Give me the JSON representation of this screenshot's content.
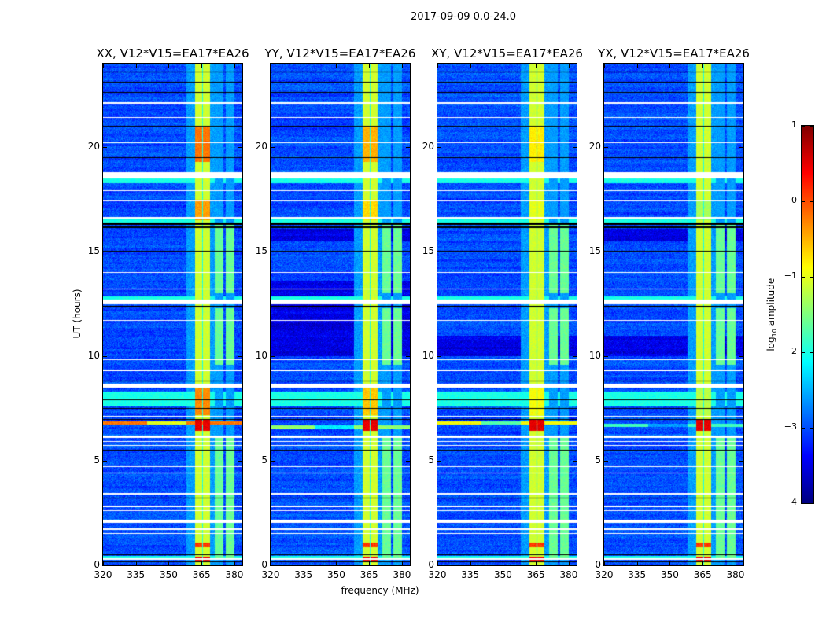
{
  "chart_data": {
    "type": "heatmap",
    "title": "2017-09-09 0.0-24.0",
    "xlabel": "frequency (MHz)",
    "ylabel": "UT (hours)",
    "xlim": [
      320,
      383.6
    ],
    "ylim": [
      0,
      24
    ],
    "xticks": [
      320,
      335,
      350,
      365,
      380
    ],
    "xtick_labels": [
      "320",
      "335",
      "350",
      "365",
      "380"
    ],
    "yticks": [
      0,
      5,
      10,
      15,
      20
    ],
    "ytick_labels": [
      "0",
      "5",
      "10",
      "15",
      "20"
    ],
    "colormap": "jet",
    "colorbar": {
      "label_prefix": "log",
      "label_sub": "10",
      "label_suffix": " amplitude",
      "range": [
        -4,
        1
      ],
      "ticks": [
        1,
        0,
        -1,
        -2,
        -3,
        -4
      ],
      "tick_labels": [
        "1",
        "0",
        "−1",
        "−2",
        "−3",
        "−4"
      ]
    },
    "shared": {
      "background_level": -3.0,
      "bands_mhz": [
        [
          362,
          365.3
        ],
        [
          365.8,
          369
        ]
      ],
      "band_level": -1.1,
      "subbands_mhz": [
        [
          371,
          375
        ],
        [
          376,
          380
        ]
      ],
      "subband_active_hours": [
        [
          0.3,
          6.2
        ],
        [
          9.6,
          12.3
        ],
        [
          13.0,
          16.3
        ]
      ],
      "subband_level": -1.6,
      "flagged_hours": [
        [
          18.5,
          18.8
        ],
        [
          12.5,
          12.72
        ],
        [
          2.02,
          2.2
        ],
        [
          8.52,
          8.68
        ],
        [
          0.28,
          0.34
        ],
        [
          16.6,
          16.65
        ],
        [
          21.4,
          21.45
        ],
        [
          22.1,
          22.15
        ],
        [
          20.2,
          20.25
        ],
        [
          17.9,
          17.95
        ],
        [
          17.4,
          17.45
        ],
        [
          14.0,
          14.05
        ],
        [
          13.2,
          13.25
        ],
        [
          11.7,
          11.75
        ],
        [
          9.8,
          9.85
        ],
        [
          9.3,
          9.35
        ],
        [
          7.1,
          7.15
        ],
        [
          6.1,
          6.2
        ],
        [
          5.9,
          5.95
        ],
        [
          5.7,
          5.75
        ],
        [
          4.7,
          4.75
        ],
        [
          4.4,
          4.45
        ],
        [
          3.4,
          3.45
        ],
        [
          2.8,
          2.85
        ],
        [
          2.6,
          2.65
        ],
        [
          1.7,
          1.75
        ],
        [
          1.5,
          1.55
        ]
      ],
      "black_hours": [
        [
          16.3,
          16.42
        ],
        [
          16.15,
          16.2
        ],
        [
          23.6,
          23.63
        ],
        [
          23.1,
          23.13
        ],
        [
          22.6,
          22.63
        ],
        [
          21.0,
          21.03
        ],
        [
          19.5,
          19.53
        ],
        [
          15.0,
          15.03
        ],
        [
          12.35,
          12.4
        ],
        [
          8.8,
          8.83
        ],
        [
          7.9,
          7.93
        ],
        [
          7.5,
          7.53
        ],
        [
          6.95,
          6.98
        ],
        [
          5.5,
          5.53
        ],
        [
          3.2,
          3.23
        ],
        [
          0.5,
          0.53
        ],
        [
          0.15,
          0.18
        ]
      ],
      "cyan_hours": [
        [
          16.42,
          16.6
        ],
        [
          18.3,
          18.5
        ],
        [
          12.72,
          12.85
        ],
        [
          7.6,
          8.3
        ],
        [
          0.35,
          0.45
        ]
      ],
      "events": [
        {
          "t": [
            19.3,
            21.0
          ],
          "level": -0.2
        },
        {
          "t": [
            6.45,
            6.95
          ],
          "level": 0.5
        },
        {
          "t": [
            7.2,
            8.45
          ],
          "level": -0.3
        },
        {
          "t": [
            0.18,
            0.42
          ],
          "level": 0.5
        },
        {
          "t": [
            0.85,
            1.1
          ],
          "level": 0.1
        },
        {
          "t": [
            16.5,
            17.5
          ],
          "level": -0.4
        }
      ]
    },
    "panels": [
      {
        "title": "XX, V12*V15=EA17*EA26",
        "dark_hours": [],
        "rfi_row_hours": [
          6.8
        ],
        "rfi_level": -0.2
      },
      {
        "title": "YY, V12*V15=EA17*EA26",
        "dark_hours": [
          [
            10.0,
            13.6
          ],
          [
            15.5,
            16.1
          ]
        ],
        "rfi_row_hours": [
          6.6
        ],
        "rfi_level": -1.4
      },
      {
        "title": "XY, V12*V15=EA17*EA26",
        "dark_hours": [
          [
            10.0,
            11.0
          ]
        ],
        "rfi_row_hours": [
          6.8
        ],
        "rfi_level": -0.9
      },
      {
        "title": "YX, V12*V15=EA17*EA26",
        "dark_hours": [
          [
            10.0,
            11.0
          ],
          [
            15.5,
            16.1
          ]
        ],
        "rfi_row_hours": [
          6.7
        ],
        "rfi_level": -1.8
      }
    ]
  }
}
